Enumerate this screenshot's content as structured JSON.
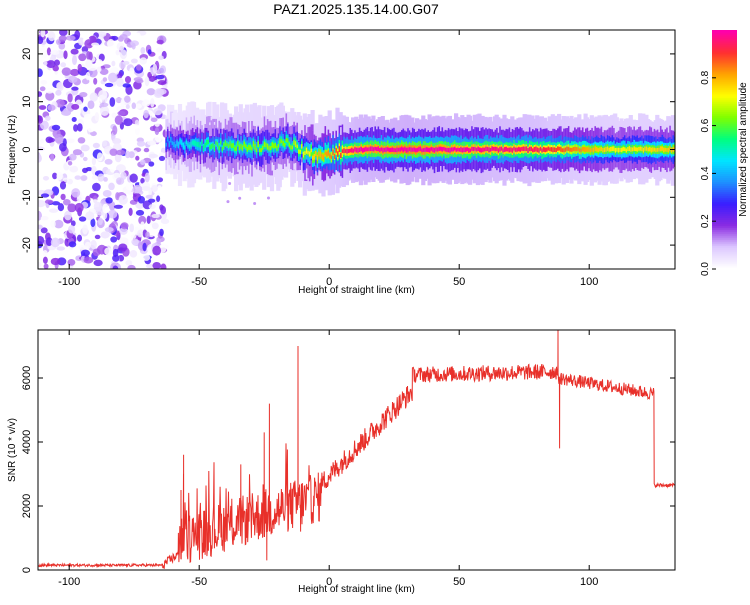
{
  "title": "PAZ1.2025.135.14.00.G07",
  "chart_data": [
    {
      "type": "heatmap",
      "xlabel": "Height of straight line (km)",
      "ylabel": "Frequency (Hz)",
      "xlim": [
        -112,
        133
      ],
      "ylim": [
        -25,
        25
      ],
      "xticks": [
        -100,
        -50,
        0,
        50,
        100
      ],
      "yticks": [
        -20,
        -10,
        0,
        10,
        20
      ],
      "colorbar": {
        "label": "Normalized spectral amplitude",
        "ticks": [
          0.0,
          0.2,
          0.4,
          0.6,
          0.8
        ],
        "range": [
          0,
          1
        ],
        "colors": [
          "#ffffff",
          "#dcc7ff",
          "#8a2be2",
          "#3a1dff",
          "#1e90ff",
          "#00e5ff",
          "#00ff7f",
          "#7fff00",
          "#ffff00",
          "#ffa500",
          "#ff3030",
          "#ff00aa"
        ]
      },
      "noise_region_x": [
        -112,
        -63
      ],
      "ridge": {
        "x": [
          -63,
          -55,
          -45,
          -35,
          -25,
          -16,
          -13,
          -8,
          -5,
          0,
          3,
          10,
          30,
          50,
          80,
          110,
          133
        ],
        "freq": [
          1.5,
          1.0,
          0.8,
          0.5,
          0.6,
          1.5,
          0.4,
          -0.8,
          -1.2,
          -1.2,
          -0.6,
          0.0,
          0.0,
          0.0,
          0.0,
          0.0,
          0.0
        ],
        "amplitude": [
          0.35,
          0.45,
          0.55,
          0.6,
          0.62,
          0.6,
          0.65,
          0.7,
          0.75,
          0.8,
          0.85,
          0.95,
          1.0,
          0.95,
          0.9,
          0.7,
          0.75
        ]
      },
      "grid": false
    },
    {
      "type": "line",
      "xlabel": "Height of straight line (km)",
      "ylabel": "SNR (10 * v/v)",
      "xlim": [
        -112,
        133
      ],
      "ylim": [
        0,
        7500
      ],
      "xticks": [
        -100,
        -50,
        0,
        50,
        100
      ],
      "yticks": [
        0,
        2000,
        4000,
        6000
      ],
      "color": "#e8302a",
      "segments": [
        {
          "x_range": [
            -112,
            -64
          ],
          "base": 150,
          "amp": 40
        },
        {
          "x_range": [
            -64,
            -58
          ],
          "base_from": 150,
          "base_to": 500,
          "amp": 150
        },
        {
          "x_range": [
            -58,
            -3
          ],
          "base_from": 900,
          "base_to": 2300,
          "amp": 800
        },
        {
          "x_range": [
            -3,
            32
          ],
          "base_from": 2700,
          "base_to": 5600,
          "amp": 350
        },
        {
          "x_range": [
            32,
            88
          ],
          "base_from": 6100,
          "base_to": 6200,
          "amp": 250
        },
        {
          "x_range": [
            88,
            125
          ],
          "base_from": 6000,
          "base_to": 5500,
          "amp": 200
        },
        {
          "x_range": [
            125,
            133
          ],
          "base": 2650,
          "amp": 60
        }
      ],
      "spikes": [
        {
          "x": -56,
          "y": 3600
        },
        {
          "x": -57,
          "y": 2500
        },
        {
          "x": -34,
          "y": 3300
        },
        {
          "x": -23,
          "y": 5200
        },
        {
          "x": -25,
          "y": 4300
        },
        {
          "x": -24,
          "y": 300
        },
        {
          "x": -12,
          "y": 7000
        },
        {
          "x": -11,
          "y": 1200
        },
        {
          "x": 88,
          "y": 7500
        },
        {
          "x": 88.6,
          "y": 3800
        }
      ],
      "grid": false
    }
  ]
}
